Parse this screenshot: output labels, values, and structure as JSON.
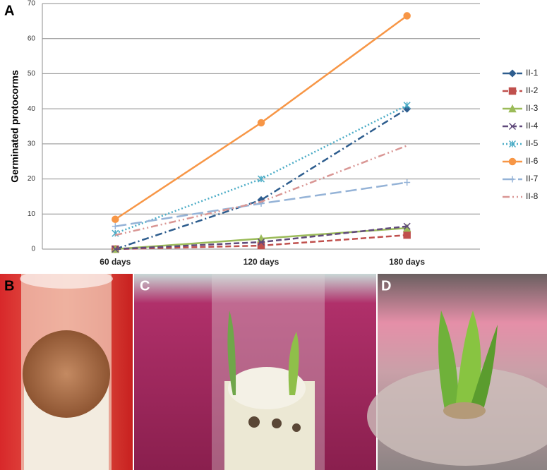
{
  "chart_data": {
    "type": "line",
    "panel_label": "A",
    "y_label": "Germinated protocorms",
    "categories": [
      "60 days",
      "120 days",
      "180 days"
    ],
    "ylim": [
      0,
      70
    ],
    "yticks": [
      0,
      10,
      20,
      30,
      40,
      50,
      60,
      70
    ],
    "grid": true,
    "legend": "right",
    "series": [
      {
        "name": "II-1",
        "color": "#2e5d8e",
        "dash": "dashdot",
        "marker": "diamond",
        "values": [
          0,
          14,
          40
        ]
      },
      {
        "name": "II-2",
        "color": "#c0504d",
        "dash": "dash",
        "marker": "square",
        "values": [
          0,
          1,
          4
        ]
      },
      {
        "name": "II-3",
        "color": "#9bbb59",
        "dash": "solid",
        "marker": "triangle",
        "values": [
          0,
          3,
          6
        ]
      },
      {
        "name": "II-4",
        "color": "#604a7b",
        "dash": "dash",
        "marker": "x",
        "values": [
          0,
          2,
          6.5
        ]
      },
      {
        "name": "II-5",
        "color": "#4bacc6",
        "dash": "dot",
        "marker": "star",
        "values": [
          4.5,
          20,
          41
        ]
      },
      {
        "name": "II-6",
        "color": "#f79646",
        "dash": "solid",
        "marker": "circle",
        "values": [
          8.5,
          36,
          66.5
        ]
      },
      {
        "name": "II-7",
        "color": "#95b3d7",
        "dash": "longdash",
        "marker": "plus",
        "values": [
          6.5,
          13,
          19
        ]
      },
      {
        "name": "II-8",
        "color": "#d99694",
        "dash": "dashdotdot",
        "marker": "none",
        "values": [
          4,
          13.5,
          29.5
        ]
      }
    ]
  },
  "photos": [
    {
      "label": "B"
    },
    {
      "label": "C"
    },
    {
      "label": "D"
    }
  ]
}
